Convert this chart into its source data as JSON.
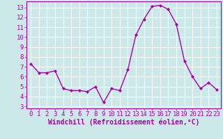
{
  "x": [
    0,
    1,
    2,
    3,
    4,
    5,
    6,
    7,
    8,
    9,
    10,
    11,
    12,
    13,
    14,
    15,
    16,
    17,
    18,
    19,
    20,
    21,
    22,
    23
  ],
  "y": [
    7.3,
    6.4,
    6.4,
    6.6,
    4.8,
    4.6,
    4.6,
    4.5,
    5.0,
    3.4,
    4.8,
    4.6,
    6.7,
    10.2,
    11.8,
    13.1,
    13.2,
    12.8,
    11.3,
    7.6,
    6.0,
    4.8,
    5.4,
    4.7
  ],
  "line_color": "#aa00aa",
  "marker": "D",
  "marker_size": 2,
  "linewidth": 1.0,
  "xlabel": "Windchill (Refroidissement éolien,°C)",
  "xlim": [
    -0.5,
    23.5
  ],
  "ylim": [
    2.8,
    13.6
  ],
  "yticks": [
    3,
    4,
    5,
    6,
    7,
    8,
    9,
    10,
    11,
    12,
    13
  ],
  "xticks": [
    0,
    1,
    2,
    3,
    4,
    5,
    6,
    7,
    8,
    9,
    10,
    11,
    12,
    13,
    14,
    15,
    16,
    17,
    18,
    19,
    20,
    21,
    22,
    23
  ],
  "bg_color": "#cce8e8",
  "grid_color": "#aacccc",
  "tick_color": "#aa00aa",
  "label_color": "#aa00aa",
  "font_size": 6.5,
  "xlabel_fontsize": 7.0
}
